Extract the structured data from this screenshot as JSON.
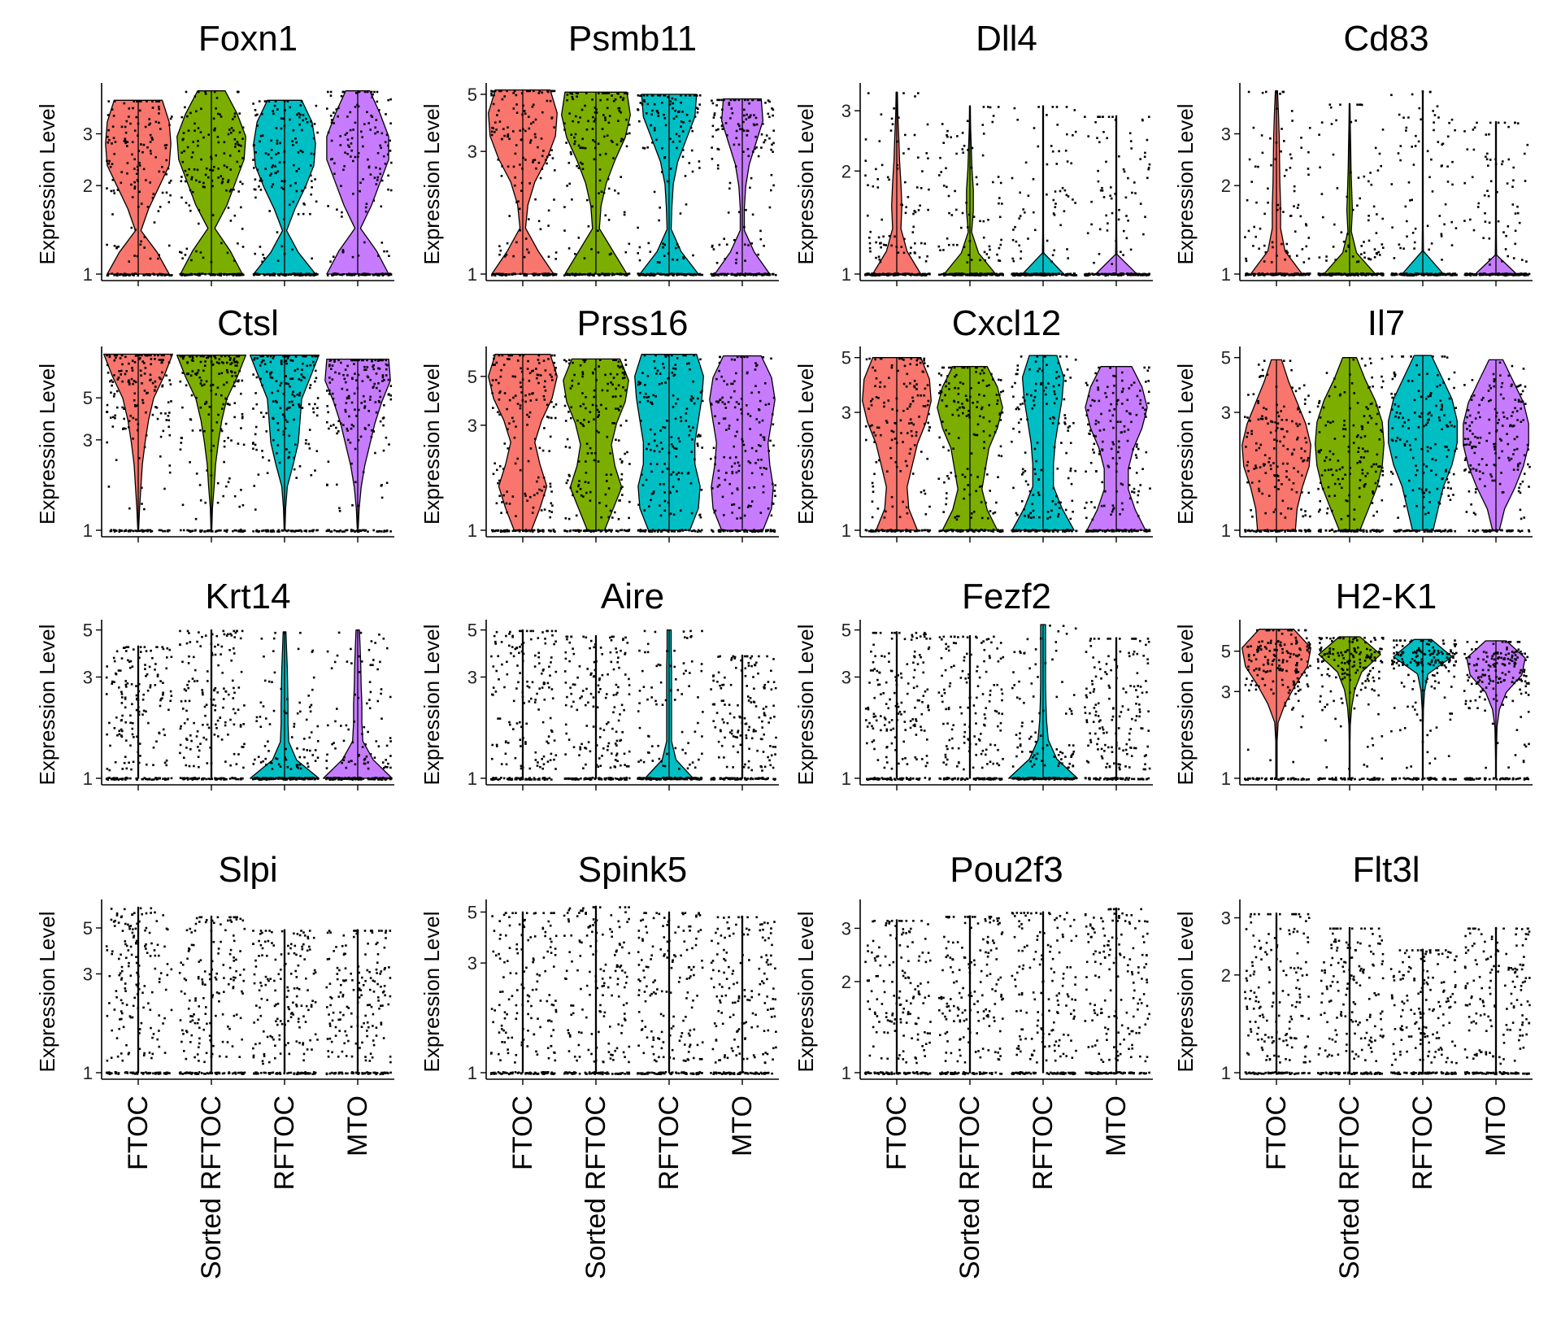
{
  "colors": {
    "FTOC": "#F8766D",
    "Sorted RFTOC": "#7CAE00",
    "RFTOC": "#00BFC4",
    "MTO": "#C77CFF"
  },
  "chart_data": {
    "type": "violin",
    "y_axis_label": "Expression Level",
    "y_scale": "log",
    "categories": [
      "FTOC",
      "Sorted RFTOC",
      "RFTOC",
      "MTO"
    ],
    "panels": [
      {
        "gene": "Foxn1",
        "yticks": [
          1,
          2,
          3
        ],
        "ymax": 4.3,
        "groups": [
          {
            "max": 3.9,
            "profile": [
              0.9,
              0.55,
              0.08,
              0.3,
              0.6,
              0.9,
              0.95,
              0.9,
              0.7
            ]
          },
          {
            "max": 4.2,
            "profile": [
              0.9,
              0.55,
              0.1,
              0.45,
              0.7,
              0.95,
              1,
              0.75,
              0.4
            ]
          },
          {
            "max": 3.9,
            "profile": [
              0.9,
              0.4,
              0.06,
              0.3,
              0.6,
              0.85,
              0.9,
              0.8,
              0.5
            ]
          },
          {
            "max": 4.2,
            "profile": [
              0.9,
              0.55,
              0.08,
              0.4,
              0.65,
              0.9,
              0.9,
              0.65,
              0.35
            ]
          }
        ]
      },
      {
        "gene": "Psmb11",
        "yticks": [
          1,
          3,
          5
        ],
        "ymax": 5.3,
        "groups": [
          {
            "max": 5.2,
            "profile": [
              0.9,
              0.45,
              0.08,
              0.15,
              0.35,
              0.7,
              0.95,
              1,
              0.8
            ]
          },
          {
            "max": 5.1,
            "profile": [
              0.9,
              0.5,
              0.1,
              0.15,
              0.3,
              0.55,
              0.85,
              1,
              0.9
            ]
          },
          {
            "max": 5.0,
            "profile": [
              0.85,
              0.35,
              0.06,
              0.08,
              0.12,
              0.25,
              0.5,
              0.75,
              0.8
            ]
          },
          {
            "max": 4.8,
            "profile": [
              0.8,
              0.35,
              0.06,
              0.06,
              0.1,
              0.2,
              0.4,
              0.6,
              0.55
            ]
          }
        ]
      },
      {
        "gene": "Dll4",
        "yticks": [
          1,
          2,
          3
        ],
        "ymax": 3.5,
        "groups": [
          {
            "max": 3.4,
            "profile": [
              0.7,
              0.3,
              0.12,
              0.15,
              0.12,
              0.08,
              0.06,
              0.03,
              0.02
            ]
          },
          {
            "max": 3.1,
            "profile": [
              0.75,
              0.25,
              0.05,
              0.1,
              0.1,
              0.06,
              0.04,
              0.02,
              0.01
            ]
          },
          {
            "max": 3.1,
            "profile": [
              0.6,
              0.02,
              0.01,
              0.01,
              0.01,
              0.01,
              0.01,
              0.01,
              0.01
            ]
          },
          {
            "max": 2.9,
            "profile": [
              0.6,
              0.02,
              0.01,
              0.01,
              0.01,
              0.01,
              0.01,
              0.01,
              0.01
            ]
          }
        ]
      },
      {
        "gene": "Cd83",
        "yticks": [
          1,
          2,
          3
        ],
        "ymax": 4.3,
        "groups": [
          {
            "max": 4.2,
            "profile": [
              0.75,
              0.25,
              0.12,
              0.12,
              0.1,
              0.09,
              0.08,
              0.06,
              0.03
            ]
          },
          {
            "max": 3.8,
            "profile": [
              0.75,
              0.2,
              0.05,
              0.08,
              0.06,
              0.04,
              0.03,
              0.02,
              0.01
            ]
          },
          {
            "max": 4.2,
            "profile": [
              0.6,
              0.02,
              0.01,
              0.01,
              0.01,
              0.01,
              0.01,
              0.01,
              0.01
            ]
          },
          {
            "max": 3.3,
            "profile": [
              0.6,
              0.02,
              0.01,
              0.01,
              0.01,
              0.01,
              0.01,
              0.01,
              0.01
            ]
          }
        ]
      },
      {
        "gene": "Ctsl",
        "yticks": [
          1,
          3,
          5
        ],
        "ymax": 8.8,
        "groups": [
          {
            "max": 8.5,
            "profile": [
              0.01,
              0.04,
              0.08,
              0.12,
              0.2,
              0.3,
              0.45,
              0.75,
              1
            ]
          },
          {
            "max": 8.4,
            "profile": [
              0.01,
              0.03,
              0.08,
              0.12,
              0.2,
              0.3,
              0.45,
              0.75,
              1
            ]
          },
          {
            "max": 8.4,
            "profile": [
              0.01,
              0.03,
              0.08,
              0.25,
              0.4,
              0.45,
              0.5,
              0.75,
              1
            ]
          },
          {
            "max": 8.0,
            "profile": [
              0.01,
              0.04,
              0.1,
              0.2,
              0.35,
              0.5,
              0.7,
              0.95,
              0.9
            ]
          }
        ]
      },
      {
        "gene": "Prss16",
        "yticks": [
          1,
          3,
          5
        ],
        "ymax": 6.5,
        "groups": [
          {
            "max": 6.3,
            "profile": [
              0.25,
              0.5,
              0.7,
              0.5,
              0.35,
              0.55,
              0.85,
              1,
              0.8
            ]
          },
          {
            "max": 6.0,
            "profile": [
              0.25,
              0.5,
              0.75,
              0.55,
              0.45,
              0.6,
              0.85,
              0.95,
              0.7
            ]
          },
          {
            "max": 6.3,
            "profile": [
              0.6,
              0.85,
              0.9,
              0.75,
              0.75,
              0.85,
              0.95,
              1,
              0.8
            ]
          },
          {
            "max": 6.2,
            "profile": [
              0.6,
              0.85,
              0.9,
              0.8,
              0.75,
              0.85,
              0.95,
              0.85,
              0.55
            ]
          }
        ]
      },
      {
        "gene": "Cxcl12",
        "yticks": [
          1,
          3,
          5
        ],
        "ymax": 5.3,
        "groups": [
          {
            "max": 5.0,
            "profile": [
              0.6,
              0.35,
              0.3,
              0.45,
              0.6,
              0.85,
              1,
              0.95,
              0.7
            ]
          },
          {
            "max": 4.6,
            "profile": [
              0.8,
              0.5,
              0.35,
              0.45,
              0.55,
              0.8,
              0.95,
              0.8,
              0.5
            ]
          },
          {
            "max": 5.1,
            "profile": [
              0.9,
              0.55,
              0.3,
              0.3,
              0.35,
              0.45,
              0.55,
              0.6,
              0.4
            ]
          },
          {
            "max": 4.6,
            "profile": [
              0.85,
              0.55,
              0.35,
              0.35,
              0.5,
              0.75,
              0.9,
              0.75,
              0.45
            ]
          }
        ]
      },
      {
        "gene": "Il7",
        "yticks": [
          1,
          3,
          5
        ],
        "ymax": 5.3,
        "groups": [
          {
            "max": 4.9,
            "profile": [
              0.55,
              0.6,
              0.75,
              0.95,
              1,
              0.85,
              0.6,
              0.35,
              0.15
            ]
          },
          {
            "max": 5.0,
            "profile": [
              0.3,
              0.55,
              0.8,
              0.95,
              1,
              0.95,
              0.75,
              0.45,
              0.2
            ]
          },
          {
            "max": 5.1,
            "profile": [
              0.3,
              0.45,
              0.6,
              0.85,
              1,
              1,
              0.85,
              0.55,
              0.25
            ]
          },
          {
            "max": 4.9,
            "profile": [
              0.1,
              0.25,
              0.55,
              0.8,
              0.95,
              0.95,
              0.8,
              0.5,
              0.2
            ]
          }
        ]
      },
      {
        "gene": "Krt14",
        "yticks": [
          1,
          3,
          5
        ],
        "ymax": 5.3,
        "groups": [
          {
            "max": 4.2,
            "profile": [
              0.01,
              0.01,
              0.01,
              0.01,
              0.01,
              0.01,
              0.01,
              0.01,
              0.01
            ]
          },
          {
            "max": 5.0,
            "profile": [
              0.01,
              0.01,
              0.01,
              0.01,
              0.01,
              0.01,
              0.01,
              0.01,
              0.01
            ]
          },
          {
            "max": 4.9,
            "profile": [
              1,
              0.35,
              0.12,
              0.1,
              0.1,
              0.09,
              0.08,
              0.06,
              0.04
            ]
          },
          {
            "max": 5.0,
            "profile": [
              1,
              0.45,
              0.15,
              0.12,
              0.12,
              0.1,
              0.09,
              0.07,
              0.05
            ]
          }
        ]
      },
      {
        "gene": "Aire",
        "yticks": [
          1,
          3,
          5
        ],
        "ymax": 5.3,
        "groups": [
          {
            "max": 5.0,
            "profile": [
              0.01,
              0.01,
              0.01,
              0.01,
              0.01,
              0.01,
              0.01,
              0.01,
              0.01
            ]
          },
          {
            "max": 4.7,
            "profile": [
              0.01,
              0.01,
              0.01,
              0.01,
              0.01,
              0.01,
              0.01,
              0.01,
              0.01
            ]
          },
          {
            "max": 5.0,
            "profile": [
              0.7,
              0.2,
              0.07,
              0.07,
              0.07,
              0.07,
              0.07,
              0.06,
              0.06
            ]
          },
          {
            "max": 3.8,
            "profile": [
              0.01,
              0.01,
              0.01,
              0.01,
              0.01,
              0.01,
              0.01,
              0.01,
              0.01
            ]
          }
        ]
      },
      {
        "gene": "Fezf2",
        "yticks": [
          1,
          3,
          5
        ],
        "ymax": 5.3,
        "groups": [
          {
            "max": 4.9,
            "profile": [
              0.01,
              0.01,
              0.01,
              0.01,
              0.01,
              0.01,
              0.01,
              0.01,
              0.01
            ]
          },
          {
            "max": 4.7,
            "profile": [
              0.01,
              0.01,
              0.01,
              0.01,
              0.01,
              0.01,
              0.01,
              0.01,
              0.01
            ]
          },
          {
            "max": 5.3,
            "profile": [
              1,
              0.4,
              0.15,
              0.1,
              0.08,
              0.07,
              0.07,
              0.07,
              0.07
            ]
          },
          {
            "max": 4.6,
            "profile": [
              0.01,
              0.01,
              0.01,
              0.01,
              0.01,
              0.01,
              0.01,
              0.01,
              0.01
            ]
          }
        ]
      },
      {
        "gene": "H2-K1",
        "yticks": [
          1,
          3,
          5
        ],
        "ymax": 7.0,
        "groups": [
          {
            "max": 6.6,
            "profile": [
              0.02,
              0.02,
              0.02,
              0.05,
              0.25,
              0.55,
              0.9,
              1,
              0.5
            ]
          },
          {
            "max": 6.0,
            "profile": [
              0.01,
              0.01,
              0.01,
              0.02,
              0.06,
              0.15,
              0.35,
              0.9,
              0.3
            ]
          },
          {
            "max": 5.8,
            "profile": [
              0.01,
              0.01,
              0.01,
              0.01,
              0.02,
              0.05,
              0.15,
              0.85,
              0.25
            ]
          },
          {
            "max": 5.7,
            "profile": [
              0.01,
              0.01,
              0.02,
              0.03,
              0.1,
              0.3,
              0.75,
              0.85,
              0.3
            ]
          }
        ]
      },
      {
        "gene": "Slpi",
        "yticks": [
          1,
          3,
          5
        ],
        "ymax": 6.5,
        "groups": [
          {
            "max": 6.3,
            "profile": [
              0.01,
              0.01,
              0.01,
              0.01,
              0.01,
              0.01,
              0.01,
              0.01,
              0.01
            ]
          },
          {
            "max": 5.7,
            "profile": [
              0.01,
              0.01,
              0.01,
              0.01,
              0.01,
              0.01,
              0.01,
              0.01,
              0.01
            ]
          },
          {
            "max": 4.9,
            "profile": [
              0.01,
              0.01,
              0.01,
              0.01,
              0.01,
              0.01,
              0.01,
              0.01,
              0.01
            ]
          },
          {
            "max": 4.9,
            "profile": [
              0.01,
              0.01,
              0.01,
              0.01,
              0.01,
              0.01,
              0.01,
              0.01,
              0.01
            ]
          }
        ]
      },
      {
        "gene": "Spink5",
        "yticks": [
          1,
          3,
          5
        ],
        "ymax": 5.4,
        "groups": [
          {
            "max": 5.0,
            "profile": [
              0.01,
              0.01,
              0.01,
              0.01,
              0.01,
              0.01,
              0.01,
              0.01,
              0.01
            ]
          },
          {
            "max": 5.3,
            "profile": [
              0.01,
              0.01,
              0.01,
              0.01,
              0.01,
              0.01,
              0.01,
              0.01,
              0.01
            ]
          },
          {
            "max": 5.0,
            "profile": [
              0.01,
              0.01,
              0.01,
              0.01,
              0.01,
              0.01,
              0.01,
              0.01,
              0.01
            ]
          },
          {
            "max": 4.8,
            "profile": [
              0.01,
              0.01,
              0.01,
              0.01,
              0.01,
              0.01,
              0.01,
              0.01,
              0.01
            ]
          }
        ]
      },
      {
        "gene": "Pou2f3",
        "yticks": [
          1,
          2,
          3
        ],
        "ymax": 3.6,
        "groups": [
          {
            "max": 3.2,
            "profile": [
              0.01,
              0.01,
              0.01,
              0.01,
              0.01,
              0.01,
              0.01,
              0.01,
              0.01
            ]
          },
          {
            "max": 3.3,
            "profile": [
              0.01,
              0.01,
              0.01,
              0.01,
              0.01,
              0.01,
              0.01,
              0.01,
              0.01
            ]
          },
          {
            "max": 3.4,
            "profile": [
              0.01,
              0.01,
              0.01,
              0.01,
              0.01,
              0.01,
              0.01,
              0.01,
              0.01
            ]
          },
          {
            "max": 3.5,
            "profile": [
              0.01,
              0.01,
              0.01,
              0.01,
              0.01,
              0.01,
              0.01,
              0.01,
              0.01
            ]
          }
        ]
      },
      {
        "gene": "Flt3l",
        "yticks": [
          1,
          2,
          3
        ],
        "ymax": 3.3,
        "groups": [
          {
            "max": 3.1,
            "profile": [
              0.01,
              0.01,
              0.01,
              0.01,
              0.01,
              0.01,
              0.01,
              0.01,
              0.01
            ]
          },
          {
            "max": 2.8,
            "profile": [
              0.01,
              0.01,
              0.01,
              0.01,
              0.01,
              0.01,
              0.01,
              0.01,
              0.01
            ]
          },
          {
            "max": 2.4,
            "profile": [
              0.01,
              0.01,
              0.01,
              0.01,
              0.01,
              0.01,
              0.01,
              0.01,
              0.01
            ]
          },
          {
            "max": 2.8,
            "profile": [
              0.01,
              0.01,
              0.01,
              0.01,
              0.01,
              0.01,
              0.01,
              0.01,
              0.01
            ]
          }
        ]
      }
    ]
  }
}
